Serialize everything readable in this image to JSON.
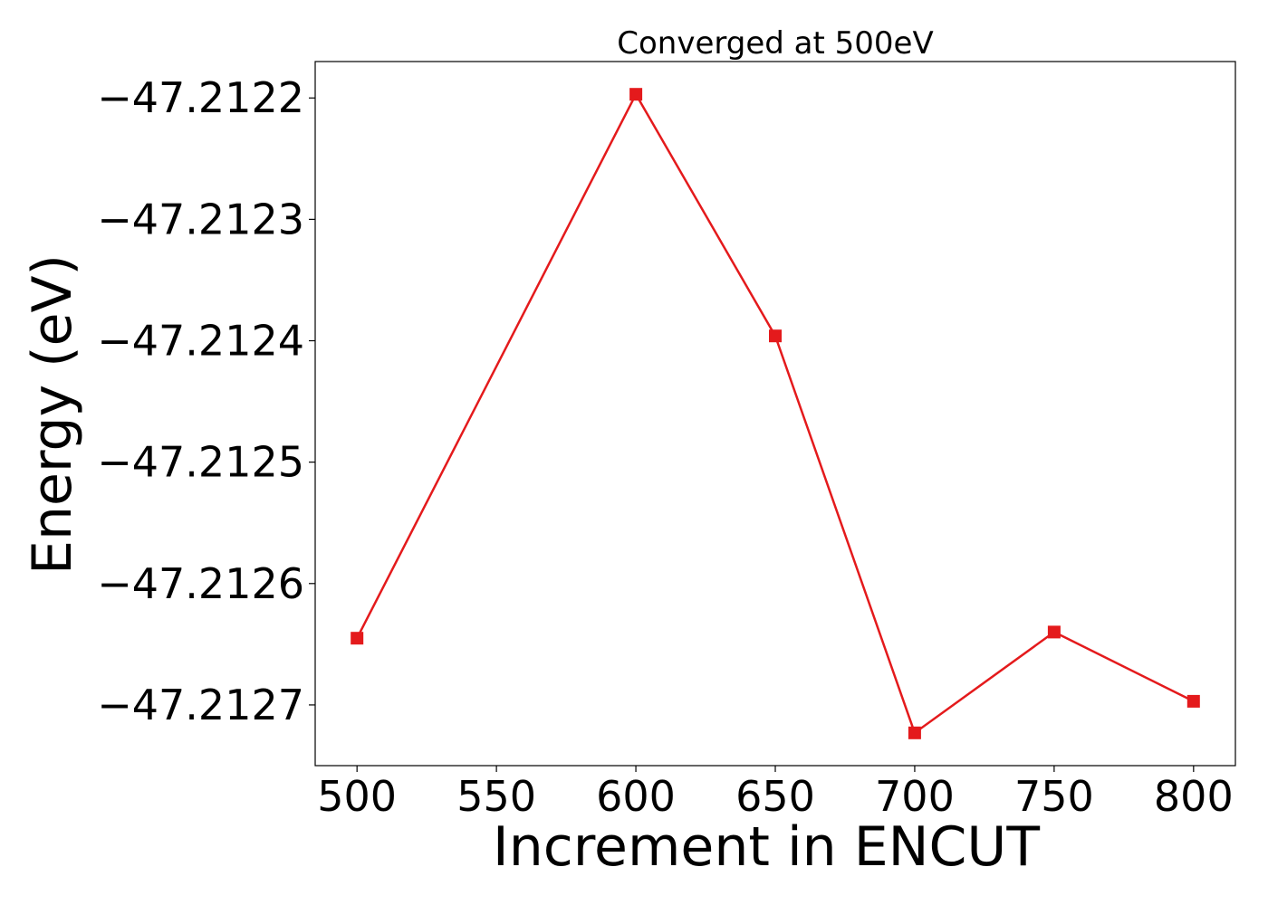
{
  "chart_data": {
    "type": "line",
    "title": "Converged at 500eV",
    "xlabel": "Increment in ENCUT",
    "ylabel": "Energy (eV)",
    "x": [
      500,
      600,
      650,
      700,
      750,
      800
    ],
    "series": [
      {
        "values": [
          -47.212645,
          -47.212197,
          -47.212396,
          -47.212723,
          -47.21264,
          -47.212697
        ],
        "color": "#e41a1c",
        "marker": "square"
      }
    ],
    "xticks": [
      500,
      550,
      600,
      650,
      700,
      750,
      800
    ],
    "xtick_labels": [
      "500",
      "550",
      "600",
      "650",
      "700",
      "750",
      "800"
    ],
    "yticks": [
      -47.2122,
      -47.2123,
      -47.2124,
      -47.2125,
      -47.2126,
      -47.2127
    ],
    "ytick_labels": [
      "−47.2122",
      "−47.2123",
      "−47.2124",
      "−47.2125",
      "−47.2126",
      "−47.2127"
    ],
    "xlim": [
      485,
      815
    ],
    "ylim": [
      -47.21275,
      -47.21217
    ],
    "grid": false,
    "legend": "none"
  }
}
